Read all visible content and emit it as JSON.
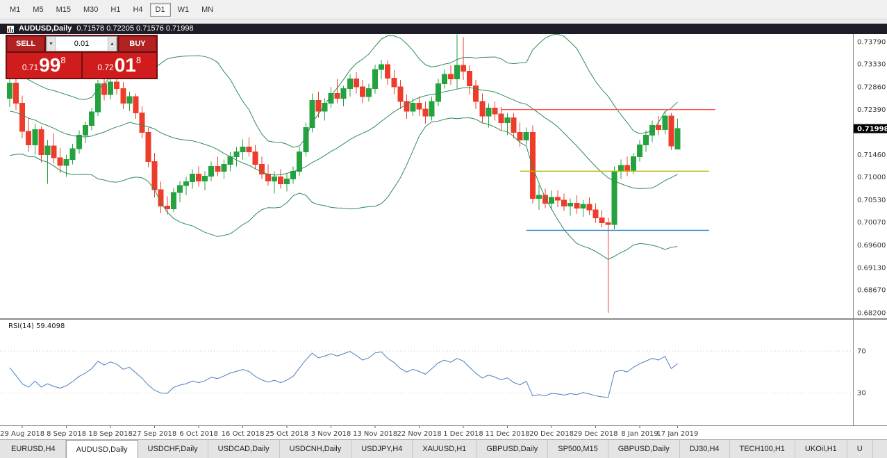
{
  "toolbar": {
    "timeframes": [
      {
        "label": "M1",
        "active": false
      },
      {
        "label": "M5",
        "active": false
      },
      {
        "label": "M15",
        "active": false
      },
      {
        "label": "M30",
        "active": false
      },
      {
        "label": "H1",
        "active": false
      },
      {
        "label": "H4",
        "active": false
      },
      {
        "label": "D1",
        "active": true
      },
      {
        "label": "W1",
        "active": false
      },
      {
        "label": "MN",
        "active": false
      }
    ]
  },
  "chart": {
    "titlebar": {
      "symbol": "AUDUSD,Daily",
      "ohlc": "0.71578 0.72205 0.71576 0.71998"
    },
    "trade_panel": {
      "sell_label": "SELL",
      "buy_label": "BUY",
      "volume": "0.01",
      "icons": {
        "spinner_down": "▼",
        "spinner_up": "▲"
      },
      "sell_price": {
        "prefix": "0.71",
        "big": "99",
        "sup": "8"
      },
      "buy_price": {
        "prefix": "0.72",
        "big": "01",
        "sup": "8"
      }
    },
    "price_scale": {
      "labels": [
        "0.73790",
        "0.73330",
        "0.72860",
        "0.72390",
        "0.71460",
        "0.71000",
        "0.70530",
        "0.70070",
        "0.69600",
        "0.69130",
        "0.68670",
        "0.68200"
      ],
      "current": "0.71998"
    },
    "colors": {
      "bull": "#23a23d",
      "bear": "#ed3d2a",
      "bollinger": "#2e8b57",
      "rsi_line": "#4a7ebb",
      "hline_red": "#ff5353",
      "hline_olive": "#b9ba00",
      "hline_blue": "#2f86d5",
      "price_tag_bg": "#000000",
      "price_tag_text": "#ffffff"
    },
    "chart_data": {
      "type": "candlestick",
      "symbol": "AUDUSD",
      "timeframe": "Daily",
      "title": "AUDUSD,Daily",
      "y_axis": {
        "min": 0.6809,
        "max": 0.7395
      },
      "x_axis": {
        "dates": [
          {
            "label": "29 Aug 2018",
            "i": 2
          },
          {
            "label": "8 Sep 2018",
            "i": 9
          },
          {
            "label": "18 Sep 2018",
            "i": 16
          },
          {
            "label": "27 Sep 2018",
            "i": 23
          },
          {
            "label": "6 Oct 2018",
            "i": 30
          },
          {
            "label": "16 Oct 2018",
            "i": 37
          },
          {
            "label": "25 Oct 2018",
            "i": 44
          },
          {
            "label": "3 Nov 2018",
            "i": 51
          },
          {
            "label": "13 Nov 2018",
            "i": 58
          },
          {
            "label": "22 Nov 2018",
            "i": 65
          },
          {
            "label": "1 Dec 2018",
            "i": 72
          },
          {
            "label": "11 Dec 2018",
            "i": 79
          },
          {
            "label": "20 Dec 2018",
            "i": 86
          },
          {
            "label": "29 Dec 2018",
            "i": 93
          },
          {
            "label": "8 Jan 2019",
            "i": 100
          },
          {
            "label": "17 Jan 2019",
            "i": 106
          }
        ]
      },
      "pre_closes": [
        0.732,
        0.7305,
        0.731,
        0.729,
        0.7275,
        0.728,
        0.726,
        0.725,
        0.7255,
        0.724,
        0.7225,
        0.723,
        0.7215,
        0.72,
        0.7205,
        0.719,
        0.718,
        0.7185,
        0.717,
        0.716
      ],
      "candles": [
        [
          0.7262,
          0.7304,
          0.7244,
          0.7294
        ],
        [
          0.7294,
          0.7302,
          0.7238,
          0.7252
        ],
        [
          0.7252,
          0.7268,
          0.718,
          0.7194
        ],
        [
          0.7194,
          0.7222,
          0.7152,
          0.7166
        ],
        [
          0.7166,
          0.721,
          0.7146,
          0.7198
        ],
        [
          0.7198,
          0.7204,
          0.713,
          0.7146
        ],
        [
          0.7146,
          0.7176,
          0.7086,
          0.7164
        ],
        [
          0.7164,
          0.719,
          0.7128,
          0.714
        ],
        [
          0.714,
          0.716,
          0.7108,
          0.7124
        ],
        [
          0.7124,
          0.7146,
          0.71,
          0.7136
        ],
        [
          0.7136,
          0.7168,
          0.7126,
          0.7158
        ],
        [
          0.7158,
          0.7196,
          0.7148,
          0.7186
        ],
        [
          0.7186,
          0.7214,
          0.717,
          0.7206
        ],
        [
          0.7206,
          0.7242,
          0.7196,
          0.7234
        ],
        [
          0.7234,
          0.73,
          0.7226,
          0.7292
        ],
        [
          0.7292,
          0.7308,
          0.7258,
          0.727
        ],
        [
          0.727,
          0.7302,
          0.726,
          0.7296
        ],
        [
          0.7296,
          0.7312,
          0.727,
          0.7282
        ],
        [
          0.7282,
          0.7296,
          0.724,
          0.7252
        ],
        [
          0.7252,
          0.7276,
          0.7236,
          0.7266
        ],
        [
          0.7266,
          0.7272,
          0.722,
          0.7232
        ],
        [
          0.7232,
          0.7246,
          0.718,
          0.7192
        ],
        [
          0.7192,
          0.7202,
          0.712,
          0.7132
        ],
        [
          0.7132,
          0.715,
          0.7058,
          0.7074
        ],
        [
          0.7074,
          0.709,
          0.7026,
          0.704
        ],
        [
          0.704,
          0.706,
          0.7022,
          0.7034
        ],
        [
          0.7034,
          0.7078,
          0.7028,
          0.7068
        ],
        [
          0.7068,
          0.7092,
          0.7048,
          0.7082
        ],
        [
          0.7082,
          0.71,
          0.7062,
          0.709
        ],
        [
          0.709,
          0.7116,
          0.7076,
          0.7106
        ],
        [
          0.7106,
          0.7122,
          0.708,
          0.7092
        ],
        [
          0.7092,
          0.7112,
          0.7072,
          0.7102
        ],
        [
          0.7102,
          0.7132,
          0.7092,
          0.7122
        ],
        [
          0.7122,
          0.7142,
          0.7102,
          0.7112
        ],
        [
          0.7112,
          0.7136,
          0.7096,
          0.7126
        ],
        [
          0.7126,
          0.7152,
          0.7112,
          0.7142
        ],
        [
          0.7142,
          0.7162,
          0.7122,
          0.7152
        ],
        [
          0.7152,
          0.7178,
          0.7136,
          0.7162
        ],
        [
          0.7162,
          0.7182,
          0.7142,
          0.7152
        ],
        [
          0.7152,
          0.7166,
          0.7116,
          0.7126
        ],
        [
          0.7126,
          0.7142,
          0.7096,
          0.7106
        ],
        [
          0.7106,
          0.7126,
          0.7082,
          0.7092
        ],
        [
          0.7092,
          0.7112,
          0.7066,
          0.71
        ],
        [
          0.71,
          0.7116,
          0.7076,
          0.7086
        ],
        [
          0.7086,
          0.7106,
          0.707,
          0.7096
        ],
        [
          0.7096,
          0.7122,
          0.7086,
          0.7112
        ],
        [
          0.7112,
          0.7162,
          0.7102,
          0.7152
        ],
        [
          0.7152,
          0.7212,
          0.7142,
          0.7202
        ],
        [
          0.7202,
          0.7272,
          0.7192,
          0.7258
        ],
        [
          0.7258,
          0.7276,
          0.7222,
          0.7236
        ],
        [
          0.7236,
          0.7262,
          0.7216,
          0.7252
        ],
        [
          0.7252,
          0.7286,
          0.7242,
          0.7272
        ],
        [
          0.7272,
          0.7302,
          0.7252,
          0.7262
        ],
        [
          0.7262,
          0.7288,
          0.7246,
          0.7282
        ],
        [
          0.7282,
          0.7312,
          0.7266,
          0.7302
        ],
        [
          0.7302,
          0.7316,
          0.7272,
          0.7286
        ],
        [
          0.7286,
          0.73,
          0.7252,
          0.7266
        ],
        [
          0.7266,
          0.7292,
          0.7256,
          0.7282
        ],
        [
          0.7282,
          0.7332,
          0.7272,
          0.7322
        ],
        [
          0.7322,
          0.7342,
          0.7302,
          0.7332
        ],
        [
          0.7332,
          0.734,
          0.729,
          0.7304
        ],
        [
          0.7304,
          0.732,
          0.727,
          0.7286
        ],
        [
          0.7286,
          0.73,
          0.724,
          0.7256
        ],
        [
          0.7256,
          0.727,
          0.722,
          0.7236
        ],
        [
          0.7236,
          0.7262,
          0.7226,
          0.7252
        ],
        [
          0.7252,
          0.7266,
          0.7226,
          0.724
        ],
        [
          0.724,
          0.7256,
          0.721,
          0.7226
        ],
        [
          0.7226,
          0.7266,
          0.7216,
          0.7256
        ],
        [
          0.7256,
          0.7302,
          0.7246,
          0.7292
        ],
        [
          0.7292,
          0.7322,
          0.7282,
          0.7312
        ],
        [
          0.7312,
          0.733,
          0.729,
          0.7302
        ],
        [
          0.7302,
          0.7394,
          0.7282,
          0.733
        ],
        [
          0.733,
          0.7388,
          0.73,
          0.7318
        ],
        [
          0.7318,
          0.733,
          0.727,
          0.7288
        ],
        [
          0.7288,
          0.73,
          0.724,
          0.7256
        ],
        [
          0.7256,
          0.7272,
          0.7212,
          0.7226
        ],
        [
          0.7226,
          0.7252,
          0.7202,
          0.7242
        ],
        [
          0.7242,
          0.7256,
          0.7216,
          0.723
        ],
        [
          0.723,
          0.7244,
          0.7196,
          0.7212
        ],
        [
          0.7212,
          0.7232,
          0.7186,
          0.7222
        ],
        [
          0.7222,
          0.7232,
          0.718,
          0.7192
        ],
        [
          0.7192,
          0.7212,
          0.7162,
          0.7176
        ],
        [
          0.7176,
          0.7202,
          0.7166,
          0.7192
        ],
        [
          0.7192,
          0.7206,
          0.7046,
          0.7056
        ],
        [
          0.7056,
          0.7084,
          0.7032,
          0.7062
        ],
        [
          0.7062,
          0.7076,
          0.7036,
          0.7046
        ],
        [
          0.7046,
          0.7072,
          0.7032,
          0.7058
        ],
        [
          0.7058,
          0.7072,
          0.7038,
          0.7052
        ],
        [
          0.7052,
          0.7066,
          0.703,
          0.704
        ],
        [
          0.704,
          0.7056,
          0.702,
          0.7046
        ],
        [
          0.7046,
          0.7062,
          0.7024,
          0.7036
        ],
        [
          0.7036,
          0.7052,
          0.7018,
          0.7044
        ],
        [
          0.7044,
          0.7058,
          0.7022,
          0.7032
        ],
        [
          0.7032,
          0.7046,
          0.7006,
          0.7016
        ],
        [
          0.7016,
          0.7032,
          0.6996,
          0.7006
        ],
        [
          0.7006,
          0.7016,
          0.682,
          0.7002
        ],
        [
          0.7002,
          0.7122,
          0.6992,
          0.7112
        ],
        [
          0.7112,
          0.7136,
          0.7096,
          0.7124
        ],
        [
          0.7124,
          0.7142,
          0.7102,
          0.7114
        ],
        [
          0.7114,
          0.715,
          0.7106,
          0.7142
        ],
        [
          0.7142,
          0.7176,
          0.7132,
          0.7166
        ],
        [
          0.7166,
          0.7196,
          0.7152,
          0.7186
        ],
        [
          0.7186,
          0.7216,
          0.7172,
          0.7206
        ],
        [
          0.7206,
          0.7226,
          0.7186,
          0.7198
        ],
        [
          0.7198,
          0.7236,
          0.7188,
          0.7226
        ],
        [
          0.7226,
          0.7232,
          0.7156,
          0.7164
        ],
        [
          0.71578,
          0.72205,
          0.71576,
          0.71998
        ]
      ],
      "objects": {
        "hlines": [
          {
            "name": "resistance-red",
            "price": 0.7239,
            "color_key": "hline_red",
            "i1": 78,
            "i2": 112
          },
          {
            "name": "level-olive",
            "price": 0.7112,
            "color_key": "hline_olive",
            "i1": 81,
            "i2": 111
          },
          {
            "name": "support-blue",
            "price": 0.699,
            "color_key": "hline_blue",
            "i1": 82,
            "i2": 111
          }
        ]
      },
      "indicators": {
        "bollinger": {
          "period": 20,
          "deviation": 2
        },
        "rsi": {
          "label": "RSI(14) 59.4098",
          "period": 14,
          "value": "59.4098",
          "levels": [
            "70",
            "30"
          ]
        }
      }
    }
  },
  "tabs": [
    {
      "label": "EURUSD,H4",
      "active": false
    },
    {
      "label": "AUDUSD,Daily",
      "active": true
    },
    {
      "label": "USDCHF,Daily",
      "active": false
    },
    {
      "label": "USDCAD,Daily",
      "active": false
    },
    {
      "label": "USDCNH,Daily",
      "active": false
    },
    {
      "label": "USDJPY,H4",
      "active": false
    },
    {
      "label": "XAUUSD,H1",
      "active": false
    },
    {
      "label": "GBPUSD,Daily",
      "active": false
    },
    {
      "label": "SP500,M15",
      "active": false
    },
    {
      "label": "GBPUSD,Daily",
      "active": false
    },
    {
      "label": "DJ30,H4",
      "active": false
    },
    {
      "label": "TECH100,H1",
      "active": false
    },
    {
      "label": "UKOil,H1",
      "active": false
    },
    {
      "label": "U",
      "active": false
    }
  ]
}
